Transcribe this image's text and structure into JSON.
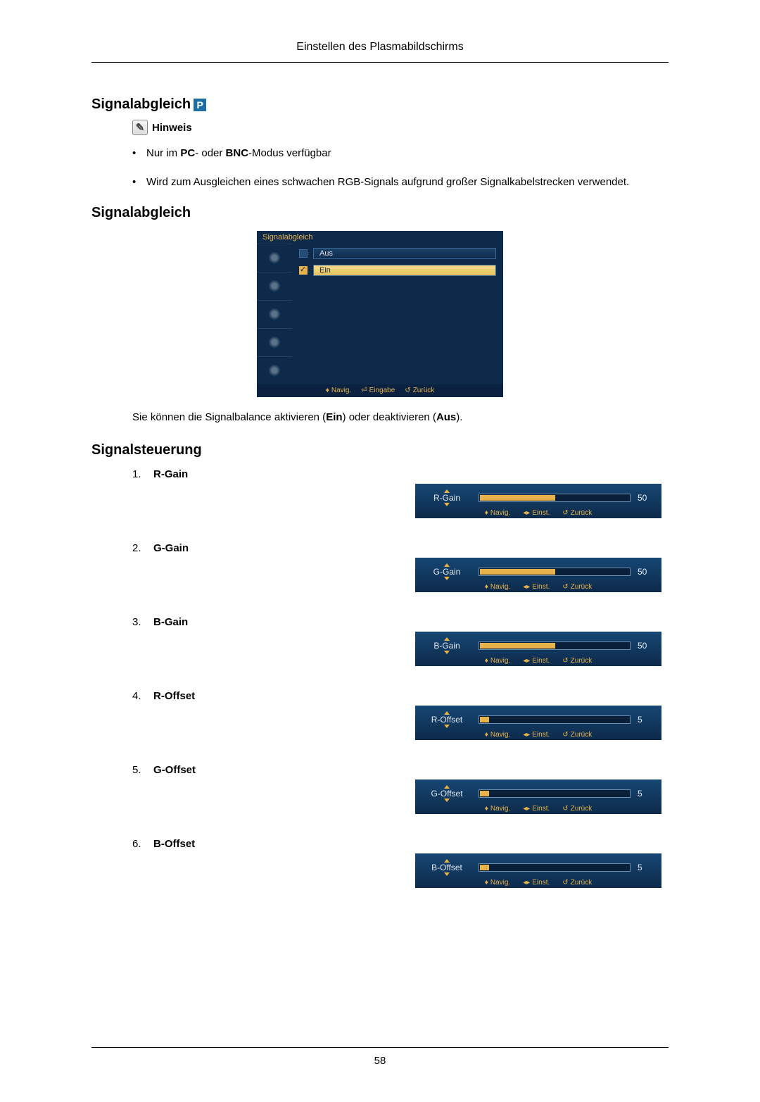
{
  "page": {
    "header": "Einstellen des Plasmabildschirms",
    "number": "58"
  },
  "section1": {
    "title": "Signalabgleich",
    "badge": "P",
    "note_label": "Hinweis",
    "bullets": [
      {
        "pre": "Nur im ",
        "b1": "PC",
        "mid": "- oder ",
        "b2": "BNC",
        "post": "-Modus verfügbar"
      },
      {
        "text": "Wird zum Ausgleichen eines schwachen RGB-Signals aufgrund großer Signalkabelstrecken verwendet."
      }
    ]
  },
  "section2": {
    "title": "Signalabgleich",
    "menu": {
      "title": "Signalabgleich",
      "options": [
        {
          "label": "Aus",
          "selected": false
        },
        {
          "label": "Ein",
          "selected": true
        }
      ],
      "footer": {
        "nav": "Navig.",
        "enter": "Eingabe",
        "back": "Zurück"
      }
    },
    "desc_pre": "Sie können die Signalbalance aktivieren (",
    "desc_b1": "Ein",
    "desc_mid": ") oder deaktivieren (",
    "desc_b2": "Aus",
    "desc_post": ")."
  },
  "section3": {
    "title": "Signalsteuerung",
    "footer": {
      "nav": "Navig.",
      "einst": "Einst.",
      "back": "Zurück"
    },
    "controls": [
      {
        "n": "1.",
        "label": "R-Gain",
        "slider_label": "R-Gain",
        "value": "50",
        "fill_pct": 50
      },
      {
        "n": "2.",
        "label": "G-Gain",
        "slider_label": "G-Gain",
        "value": "50",
        "fill_pct": 50
      },
      {
        "n": "3.",
        "label": "B-Gain",
        "slider_label": "B-Gain",
        "value": "50",
        "fill_pct": 50
      },
      {
        "n": "4.",
        "label": "R-Offset",
        "slider_label": "R-Offset",
        "value": "5",
        "fill_pct": 6
      },
      {
        "n": "5.",
        "label": "G-Offset",
        "slider_label": "G-Offset",
        "value": "5",
        "fill_pct": 6
      },
      {
        "n": "6.",
        "label": "B-Offset",
        "slider_label": "B-Offset",
        "value": "5",
        "fill_pct": 6
      }
    ]
  },
  "colors": {
    "osd_bg": "#0d2a4a",
    "osd_accent": "#e8b24a",
    "osd_text": "#e2e8f0",
    "osd_border": "#6a8db0"
  }
}
